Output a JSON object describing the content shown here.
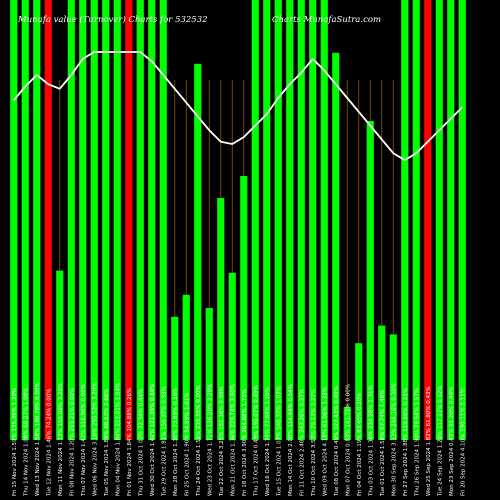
{
  "chart_data": {
    "type": "bar",
    "title": "Munafa value (Turnover) Charts for 532532",
    "watermark": "Charts MunafaSutra.com",
    "colors": {
      "background": "#000000",
      "bar_up": "#00ff00",
      "bar_down": "#ff0000",
      "line": "#ffffff",
      "grid": "#8b5a00"
    },
    "grid": true,
    "ylim": [
      0,
      100
    ],
    "categories": [
      "Fri 15 Nov 2024 1.59% 135.36% 1.20%",
      "Thu 14 Nov 2024 1.08% 68.27% 1.08%",
      "Wed 13 Nov 2024 1.58% 180.76% 0.00%",
      "Tue 12 Nov 2024 1.46% 74.24% 0.00%",
      "Mon 11 Nov 2024 1.13% 155.00% 3.20%",
      "Fri 08 Nov 2024 1.20% 203.21% 0.00%",
      "Thu 07 Nov 2024 1.42% 116.90% 0.00%",
      "Wed 06 Nov 2024 3.18% 255.52% 3.20%",
      "Tue 05 Nov 2024 1.89% 68.63% 2.66%",
      "Mon 04 Nov 2024 1.84% 213.01% 1.84%",
      "Fri 01 Nov 2024 1.84% 104.88% 0.26%",
      "Thu 31 Oct 2024 1.02% 72.34% 0.44%",
      "Wed 30 Oct 2024 1.42% 121.39% 0.84%",
      "Tue 29 Oct 2024 1.81% 150.97% 0.93%",
      "Mon 28 Oct 2024 1.36% 73.89% 0.26%",
      "Fri 25 Oct 2024 1.90% 54.89% 1.01%",
      "Thu 24 Oct 2024 1.52% 215.55% 0.00%",
      "Wed 23 Oct 2024 1.71% 136.20% 3.20%",
      "Tue 22 Oct 2024 3.25% 151.16% 0.99%",
      "Mon 21 Oct 2024 1.36% 229.74% 3.90%",
      "Fri 18 Oct 2024 3.90% 264.68% 1.73%",
      "Thu 17 Oct 2024 0.49% 190.07% 0.49%",
      "Wed 16 Oct 2024 1.74% 77.84% 1.10%",
      "Tue 15 Oct 2024 1.07% 140.37% 1.07%",
      "Mon 14 Oct 2024 2.00% 114.44% 0.54%",
      "Fri 11 Oct 2024 2.48% 243.26% 0.37%",
      "Thu 10 Oct 2024 3.53% 79.13% 3.27%",
      "Wed 09 Oct 2024 4.18% 61.06% 1.33%",
      "Tue 08 Oct 2024 0.49% 127.43% 0.49%",
      "Mon 07 Oct 2024 0.83% 141.71% 0.00%",
      "Fri 04 Oct 2024 1.19% 83.45% 0.20%",
      "Thu 03 Oct 2024 1.36% 234.28% 1.31%",
      "Tue 01 Oct 2024 1.58% 67.74% 1.46%",
      "Mon 30 Sep 2024 3.13% 244.16% 0.30%",
      "Fri 27 Sep 2024 1.88% 119.88% 0.23%",
      "Thu 26 Sep 2024 1.90% 79.54% 1.57%",
      "Wed 25 Sep 2024 1.82% 61.80% 0.43%",
      "Tue 24 Sep 2024 1.20% 117.17% 0.52%",
      "Mon 23 Sep 2024 0.49% 91.20% 0.49%",
      "Fri 20 Sep 2024 4.10% 190.11% 2.11%"
    ],
    "series": [
      {
        "role": "bars",
        "values": [
          100,
          100,
          100,
          100,
          38.5,
          100,
          100,
          100,
          100,
          100,
          100,
          100,
          100,
          100,
          28,
          33,
          85.5,
          30,
          55,
          38,
          60,
          100,
          100,
          100,
          100,
          100,
          100,
          100,
          88,
          7.5,
          22,
          72.5,
          26,
          24,
          100,
          100,
          100,
          100,
          100,
          100
        ],
        "colors": [
          "g",
          "g",
          "g",
          "r",
          "g",
          "g",
          "g",
          "g",
          "g",
          "g",
          "r",
          "g",
          "g",
          "g",
          "g",
          "g",
          "g",
          "g",
          "g",
          "g",
          "g",
          "g",
          "g",
          "g",
          "g",
          "g",
          "g",
          "g",
          "g",
          "g",
          "g",
          "g",
          "g",
          "g",
          "g",
          "g",
          "r",
          "g",
          "g",
          "g"
        ]
      },
      {
        "role": "line",
        "values": [
          79,
          85,
          90,
          86,
          84,
          90,
          97,
          100,
          100,
          100,
          100,
          100,
          96,
          90,
          84,
          78,
          72,
          66,
          61,
          60,
          63,
          68,
          73,
          80,
          86,
          91,
          97,
          92,
          86,
          80,
          74,
          68,
          62,
          56,
          53,
          56,
          61,
          66,
          71,
          76
        ]
      }
    ]
  }
}
